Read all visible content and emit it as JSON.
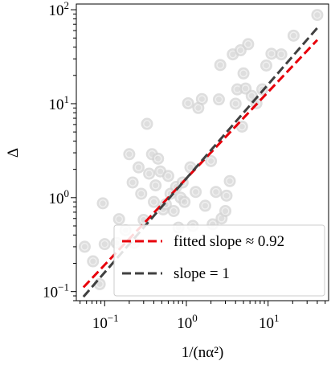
{
  "chart_data": {
    "type": "scatter",
    "xlabel": "1/(nα²)",
    "ylabel": "Δ",
    "xscale": "log",
    "yscale": "log",
    "xlim": [
      0.045,
      55
    ],
    "ylim": [
      0.08,
      115
    ],
    "grid": false,
    "x_ticks": [
      {
        "value": 0.1,
        "base": "10",
        "exp": "−1"
      },
      {
        "value": 1,
        "base": "10",
        "exp": "0"
      },
      {
        "value": 10,
        "base": "10",
        "exp": "1"
      }
    ],
    "y_ticks": [
      {
        "value": 0.1,
        "base": "10",
        "exp": "−1"
      },
      {
        "value": 1,
        "base": "10",
        "exp": "0"
      },
      {
        "value": 10,
        "base": "10",
        "exp": "1"
      },
      {
        "value": 100,
        "base": "10",
        "exp": "2"
      }
    ],
    "scatter_color": "#d3d3d3",
    "points": [
      [
        0.057,
        0.3
      ],
      [
        0.072,
        0.21
      ],
      [
        0.087,
        0.12
      ],
      [
        0.095,
        0.87
      ],
      [
        0.1,
        0.32
      ],
      [
        0.14,
        0.33
      ],
      [
        0.15,
        0.59
      ],
      [
        0.18,
        0.45
      ],
      [
        0.2,
        2.9
      ],
      [
        0.22,
        1.45
      ],
      [
        0.23,
        0.33
      ],
      [
        0.26,
        2.1
      ],
      [
        0.28,
        1.1
      ],
      [
        0.3,
        0.58
      ],
      [
        0.33,
        6.1
      ],
      [
        0.35,
        1.8
      ],
      [
        0.38,
        2.9
      ],
      [
        0.4,
        0.9
      ],
      [
        0.42,
        1.35
      ],
      [
        0.45,
        2.6
      ],
      [
        0.48,
        1.9
      ],
      [
        0.52,
        0.75
      ],
      [
        0.56,
        0.85
      ],
      [
        0.6,
        1.7
      ],
      [
        0.64,
        1.1
      ],
      [
        0.7,
        0.72
      ],
      [
        0.75,
        1.3
      ],
      [
        0.8,
        0.48
      ],
      [
        0.85,
        1.0
      ],
      [
        0.9,
        1.45
      ],
      [
        0.95,
        0.9
      ],
      [
        1.05,
        10.1
      ],
      [
        1.12,
        2.1
      ],
      [
        1.2,
        0.5
      ],
      [
        1.3,
        1.15
      ],
      [
        1.4,
        9.0
      ],
      [
        1.55,
        11.2
      ],
      [
        1.7,
        0.82
      ],
      [
        2.0,
        2.45
      ],
      [
        2.1,
        0.52
      ],
      [
        2.3,
        1.15
      ],
      [
        2.5,
        11.1
      ],
      [
        2.6,
        25.8
      ],
      [
        2.7,
        0.6
      ],
      [
        3.0,
        0.72
      ],
      [
        3.1,
        1.05
      ],
      [
        3.4,
        1.5
      ],
      [
        3.7,
        33.5
      ],
      [
        4.0,
        10.0
      ],
      [
        4.2,
        14.2
      ],
      [
        4.6,
        37.0
      ],
      [
        4.8,
        5.7
      ],
      [
        5.0,
        21.0
      ],
      [
        5.3,
        14.5
      ],
      [
        5.7,
        43.0
      ],
      [
        6.3,
        12.1
      ],
      [
        7.2,
        10.1
      ],
      [
        8.5,
        14.2
      ],
      [
        9.5,
        25.5
      ],
      [
        11.0,
        34.0
      ],
      [
        14.5,
        33.5
      ],
      [
        20.5,
        53.0
      ],
      [
        40.0,
        88.0
      ]
    ],
    "series": [
      {
        "name": "fitted slope ≈ 0.92",
        "color": "#e8000b",
        "dash": "dashed",
        "slope": 0.92,
        "intercept_at_1": 1.6
      },
      {
        "name": "slope = 1",
        "color": "#404040",
        "dash": "dashed",
        "slope": 1,
        "intercept_at_1": 1.6
      }
    ],
    "fit_x_range": [
      0.055,
      40
    ],
    "legend": {
      "placement": "lower-right",
      "entries": [
        {
          "prefix": "fitted slope",
          "symbol": "≈",
          "suffix": "0.92"
        },
        {
          "prefix": "slope",
          "symbol": "=",
          "suffix": "1"
        }
      ]
    }
  }
}
